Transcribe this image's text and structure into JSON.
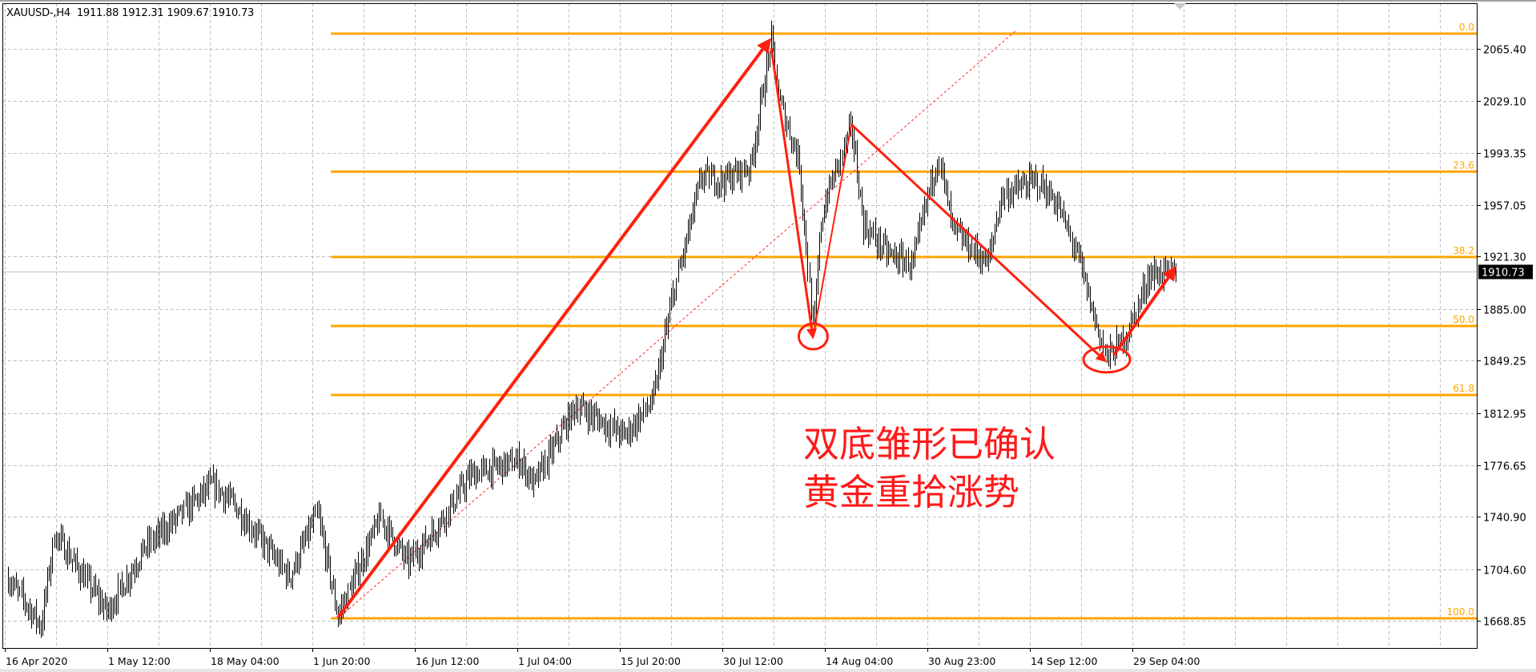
{
  "header": {
    "symbol": "XAUUSD-,H4",
    "open": "1911.88",
    "high": "1912.31",
    "low": "1909.67",
    "close": "1910.73"
  },
  "bid_label": "1910.73",
  "annotation": {
    "line1": "双底雏形已确认",
    "line2": "黄金重拾涨势"
  },
  "colors": {
    "bars": "#000000",
    "fibonacci": "#ffa500",
    "drawings": "#ff2010",
    "grid": "#c0c0c0",
    "bid_line": "#c0c0c0",
    "bid_box": "#000000"
  },
  "chart_data": {
    "type": "ohlc-bar",
    "symbol": "XAUUSD-",
    "timeframe": "H4",
    "grid": true,
    "ylim": [
      1668.85,
      2065.4
    ],
    "y_ticks": [
      "2065.40",
      "2029.10",
      "1993.35",
      "1957.05",
      "1921.30",
      "1885.00",
      "1849.25",
      "1812.95",
      "1776.65",
      "1740.90",
      "1704.60",
      "1668.85"
    ],
    "x_ticks": [
      {
        "label": "16 Apr 2020",
        "date": "2020-04-16T00:00"
      },
      {
        "label": "1 May 12:00",
        "date": "2020-05-01T12:00"
      },
      {
        "label": "18 May 04:00",
        "date": "2020-05-18T04:00"
      },
      {
        "label": "1 Jun 20:00",
        "date": "2020-06-01T20:00"
      },
      {
        "label": "16 Jun 12:00",
        "date": "2020-06-16T12:00"
      },
      {
        "label": "1 Jul 04:00",
        "date": "2020-07-01T04:00"
      },
      {
        "label": "15 Jul 20:00",
        "date": "2020-07-15T20:00"
      },
      {
        "label": "30 Jul 12:00",
        "date": "2020-07-30T12:00"
      },
      {
        "label": "14 Aug 04:00",
        "date": "2020-08-14T04:00"
      },
      {
        "label": "30 Aug 23:00",
        "date": "2020-08-30T23:00"
      },
      {
        "label": "14 Sep 12:00",
        "date": "2020-09-14T12:00"
      },
      {
        "label": "29 Sep 04:00",
        "date": "2020-09-29T04:00"
      }
    ],
    "current_price": 1910.73,
    "price_path_approx": [
      [
        "2020-04-16",
        1698
      ],
      [
        "2020-04-21",
        1665
      ],
      [
        "2020-04-23",
        1729
      ],
      [
        "2020-05-01",
        1675
      ],
      [
        "2020-05-07",
        1719
      ],
      [
        "2020-05-18",
        1763
      ],
      [
        "2020-05-21",
        1750
      ],
      [
        "2020-05-29",
        1699
      ],
      [
        "2020-06-02",
        1743
      ],
      [
        "2020-06-05",
        1672
      ],
      [
        "2020-06-11",
        1740
      ],
      [
        "2020-06-15",
        1709
      ],
      [
        "2020-06-19",
        1733
      ],
      [
        "2020-06-24",
        1770
      ],
      [
        "2020-07-01",
        1780
      ],
      [
        "2020-07-03",
        1763
      ],
      [
        "2020-07-09",
        1818
      ],
      [
        "2020-07-16",
        1797
      ],
      [
        "2020-07-20",
        1821
      ],
      [
        "2020-07-23",
        1896
      ],
      [
        "2020-07-27",
        1977
      ],
      [
        "2020-07-30",
        1974
      ],
      [
        "2020-08-03",
        1984
      ],
      [
        "2020-08-06",
        2072
      ],
      [
        "2020-08-07",
        2031
      ],
      [
        "2020-08-10",
        1987
      ],
      [
        "2020-08-12",
        1866
      ],
      [
        "2020-08-13",
        1943
      ],
      [
        "2020-08-14",
        1964
      ],
      [
        "2020-08-18",
        2011
      ],
      [
        "2020-08-20",
        1943
      ],
      [
        "2020-08-24",
        1923
      ],
      [
        "2020-08-28",
        1916
      ],
      [
        "2020-08-31",
        1974
      ],
      [
        "2020-09-01",
        1991
      ],
      [
        "2020-09-03",
        1940
      ],
      [
        "2020-09-08",
        1916
      ],
      [
        "2020-09-10",
        1964
      ],
      [
        "2020-09-15",
        1974
      ],
      [
        "2020-09-18",
        1957
      ],
      [
        "2020-09-21",
        1919
      ],
      [
        "2020-09-23",
        1882
      ],
      [
        "2020-09-25",
        1851
      ],
      [
        "2020-09-28",
        1868
      ],
      [
        "2020-10-01",
        1909
      ],
      [
        "2020-10-05",
        1911
      ]
    ],
    "fibonacci": {
      "start": {
        "date": "2020-06-04",
        "price": 1670.5
      },
      "levels": [
        {
          "label": "0.0",
          "price": 2075.95
        },
        {
          "label": "23.6",
          "price": 1980.26
        },
        {
          "label": "38.2",
          "price": 1921.07
        },
        {
          "label": "50.0",
          "price": 1873.23
        },
        {
          "label": "61.8",
          "price": 1825.38
        },
        {
          "label": "100.0",
          "price": 1670.5
        }
      ],
      "trendline": [
        {
          "date": "2020-06-05",
          "price": 1670.5
        },
        {
          "date": "2020-09-12",
          "price": 2078
        }
      ]
    },
    "drawings": [
      {
        "kind": "arrow",
        "weight": "heavy",
        "from": {
          "date": "2020-06-05",
          "price": 1671
        },
        "to": {
          "date": "2020-08-06",
          "price": 2073
        }
      },
      {
        "kind": "arrow",
        "weight": "medium",
        "from": {
          "date": "2020-08-06",
          "price": 2066
        },
        "to": {
          "date": "2020-08-12",
          "price": 1864
        }
      },
      {
        "kind": "line",
        "weight": "light",
        "from": {
          "date": "2020-08-12",
          "price": 1866
        },
        "to": {
          "date": "2020-08-18",
          "price": 2013
        }
      },
      {
        "kind": "arrow",
        "weight": "medium",
        "from": {
          "date": "2020-08-18",
          "price": 2013
        },
        "to": {
          "date": "2020-09-25",
          "price": 1848
        }
      },
      {
        "kind": "arrow",
        "weight": "heavy",
        "from": {
          "date": "2020-09-26",
          "price": 1853
        },
        "to": {
          "date": "2020-10-05",
          "price": 1915
        }
      },
      {
        "kind": "ellipse",
        "center": {
          "date": "2020-08-12",
          "price": 1866
        }
      },
      {
        "kind": "ellipse",
        "center": {
          "date": "2020-09-25",
          "price": 1850
        }
      }
    ]
  }
}
